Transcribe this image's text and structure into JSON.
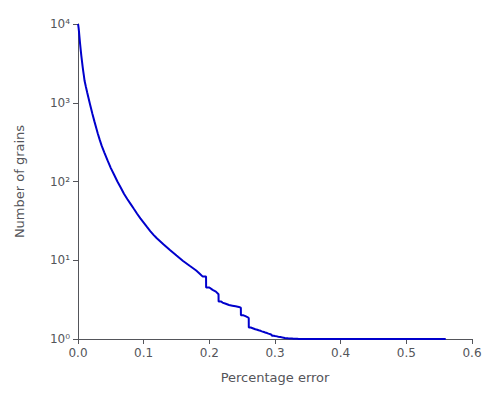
{
  "chart_data": {
    "type": "line",
    "xlabel": "Percentage error",
    "ylabel": "Number of grains",
    "log": "y",
    "grid": false,
    "color": "#0000cc",
    "xlim": [
      0,
      0.6
    ],
    "ylim": [
      1,
      10000
    ],
    "xticks": [
      {
        "value": 0,
        "label": "0.0"
      },
      0.1,
      0.2,
      0.3,
      0.4,
      0.5,
      0.6
    ],
    "yticks": [
      {
        "value": 1,
        "label": "10⁰"
      },
      {
        "value": 10,
        "label": "10¹"
      },
      {
        "value": 100,
        "label": "10²"
      },
      {
        "value": 1000,
        "label": "10³"
      },
      {
        "value": 10000,
        "label": "10⁴"
      }
    ],
    "x": [
      0.0,
      0.0005,
      0.001,
      0.0015,
      0.002,
      0.003,
      0.004,
      0.005,
      0.006,
      0.007,
      0.008,
      0.009,
      0.01,
      0.012,
      0.014,
      0.016,
      0.018,
      0.02,
      0.022,
      0.025,
      0.028,
      0.03,
      0.033,
      0.036,
      0.04,
      0.045,
      0.05,
      0.055,
      0.06,
      0.065,
      0.07,
      0.075,
      0.08,
      0.085,
      0.09,
      0.095,
      0.1,
      0.105,
      0.11,
      0.115,
      0.12,
      0.13,
      0.14,
      0.15,
      0.16,
      0.17,
      0.18,
      0.185,
      0.19,
      0.195,
      0.1951,
      0.2,
      0.205,
      0.21,
      0.214,
      0.2141,
      0.218,
      0.22,
      0.225,
      0.23,
      0.235,
      0.24,
      0.245,
      0.248,
      0.2481,
      0.252,
      0.255,
      0.258,
      0.26,
      0.2601,
      0.263,
      0.265,
      0.268,
      0.27,
      0.273,
      0.275,
      0.278,
      0.28,
      0.283,
      0.285,
      0.288,
      0.29,
      0.293,
      0.295,
      0.2951,
      0.298,
      0.3,
      0.303,
      0.305,
      0.308,
      0.31,
      0.313,
      0.315,
      0.318,
      0.32,
      0.322,
      0.324,
      0.326,
      0.3261,
      0.328,
      0.33,
      0.332,
      0.334,
      0.3341,
      0.336,
      0.338,
      0.34,
      0.36,
      0.38,
      0.4,
      0.42,
      0.43,
      0.4301,
      0.44,
      0.46,
      0.48,
      0.5,
      0.52,
      0.54,
      0.56,
      0.5601
    ],
    "values": [
      10000,
      9500,
      8800,
      8000,
      7200,
      5800,
      4800,
      4000,
      3400,
      2900,
      2500,
      2200,
      1900,
      1600,
      1350,
      1150,
      980,
      840,
      720,
      580,
      470,
      410,
      340,
      285,
      235,
      185,
      148,
      122,
      100,
      84,
      70,
      60,
      52,
      45,
      39,
      34,
      30,
      26.5,
      23.5,
      21,
      19,
      16,
      13.5,
      11.5,
      9.8,
      8.5,
      7.4,
      6.8,
      6.2,
      6.2,
      4.5,
      4.5,
      4.2,
      4.0,
      3.7,
      3.0,
      3.0,
      2.9,
      2.8,
      2.7,
      2.65,
      2.6,
      2.55,
      2.5,
      2.0,
      2.0,
      1.95,
      1.9,
      1.85,
      1.4,
      1.4,
      1.38,
      1.35,
      1.33,
      1.31,
      1.29,
      1.27,
      1.25,
      1.23,
      1.21,
      1.19,
      1.17,
      1.15,
      1.13,
      1.1,
      1.1,
      1.09,
      1.08,
      1.07,
      1.06,
      1.05,
      1.04,
      1.03,
      1.025,
      1.02,
      1.018,
      1.016,
      1.014,
      1.01,
      1.01,
      1.008,
      1.006,
      1.004,
      1.0,
      1.0,
      1.0,
      1.0,
      1.0,
      1.0,
      1.0,
      1.0,
      1.0,
      1.0,
      1.0,
      1.0,
      1.0,
      1.0,
      1.0,
      1.0,
      1.0,
      1.0
    ]
  }
}
